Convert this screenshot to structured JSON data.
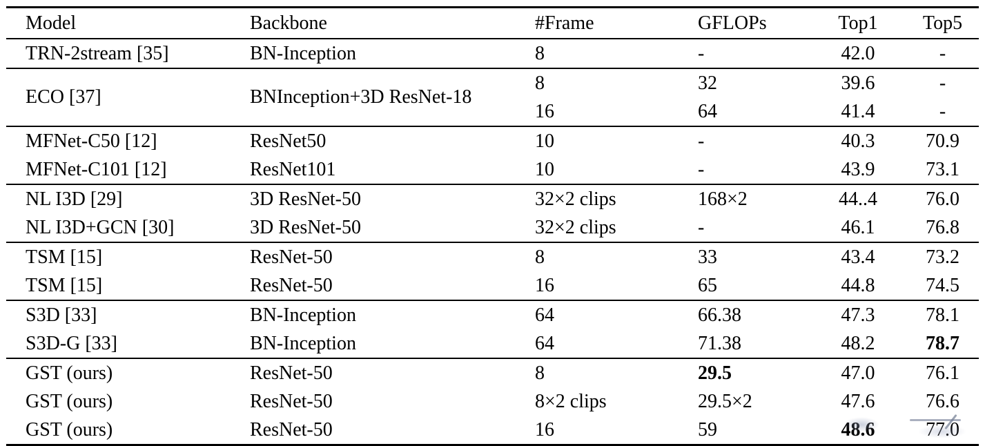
{
  "page": {
    "background_color": "#ffffff",
    "text_color": "#000000",
    "rule_color": "#000000",
    "watermark_color": "#8d96a9"
  },
  "table": {
    "columns": {
      "model": "Model",
      "backbone": "Backbone",
      "frame": "#Frame",
      "gflops": "GFLOPs",
      "top1": "Top1",
      "top5": "Top5"
    },
    "rows": [
      {
        "model": "TRN-2stream [35]",
        "backbone": "BN-Inception",
        "frame": "8",
        "gflops": "-",
        "top1": "42.0",
        "top5": "-"
      },
      {
        "model": "ECO [37]",
        "backbone": "BNInception+3D ResNet-18",
        "frame": "8",
        "gflops": "32",
        "top1": "39.6",
        "top5": "-"
      },
      {
        "frame": "16",
        "gflops": "64",
        "top1": "41.4",
        "top5": "-"
      },
      {
        "model": "MFNet-C50 [12]",
        "backbone": "ResNet50",
        "frame": "10",
        "gflops": "-",
        "top1": "40.3",
        "top5": "70.9"
      },
      {
        "model": "MFNet-C101 [12]",
        "backbone": "ResNet101",
        "frame": "10",
        "gflops": "-",
        "top1": "43.9",
        "top5": "73.1"
      },
      {
        "model": "NL I3D [29]",
        "backbone": "3D ResNet-50",
        "frame": "32×2 clips",
        "gflops": "168×2",
        "top1": "44..4",
        "top5": "76.0"
      },
      {
        "model": "NL I3D+GCN [30]",
        "backbone": "3D ResNet-50",
        "frame": "32×2 clips",
        "gflops": "-",
        "top1": "46.1",
        "top5": "76.8"
      },
      {
        "model": "TSM [15]",
        "backbone": "ResNet-50",
        "frame": "8",
        "gflops": "33",
        "top1": "43.4",
        "top5": "73.2"
      },
      {
        "model": "TSM [15]",
        "backbone": "ResNet-50",
        "frame": "16",
        "gflops": "65",
        "top1": "44.8",
        "top5": "74.5"
      },
      {
        "model": "S3D [33]",
        "backbone": "BN-Inception",
        "frame": "64",
        "gflops": "66.38",
        "top1": "47.3",
        "top5": "78.1"
      },
      {
        "model": "S3D-G [33]",
        "backbone": "BN-Inception",
        "frame": "64",
        "gflops": "71.38",
        "top1": "48.2",
        "top5": "78.7"
      },
      {
        "model": "GST (ours)",
        "backbone": "ResNet-50",
        "frame": "8",
        "gflops": "29.5",
        "top1": "47.0",
        "top5": "76.1"
      },
      {
        "model": "GST (ours)",
        "backbone": "ResNet-50",
        "frame": "8×2 clips",
        "gflops": "29.5×2",
        "top1": "47.6",
        "top5": "76.6"
      },
      {
        "model": "GST (ours)",
        "backbone": "ResNet-50",
        "frame": "16",
        "gflops": "59",
        "top1": "48.6",
        "top5": "77.0"
      }
    ],
    "bold_cells": [
      {
        "row": 10,
        "field": "top5"
      },
      {
        "row": 11,
        "field": "gflops"
      },
      {
        "row": 13,
        "field": "top1"
      }
    ],
    "merged_cells": [
      {
        "rows": [
          1,
          2
        ],
        "fields": [
          "model",
          "backbone"
        ],
        "label": "ECO [37] spans two frame settings"
      }
    ],
    "watermark_artifact": {
      "present": true,
      "location": "over bottom-right values (48.6 and 77.0)",
      "legible_text": ""
    }
  }
}
